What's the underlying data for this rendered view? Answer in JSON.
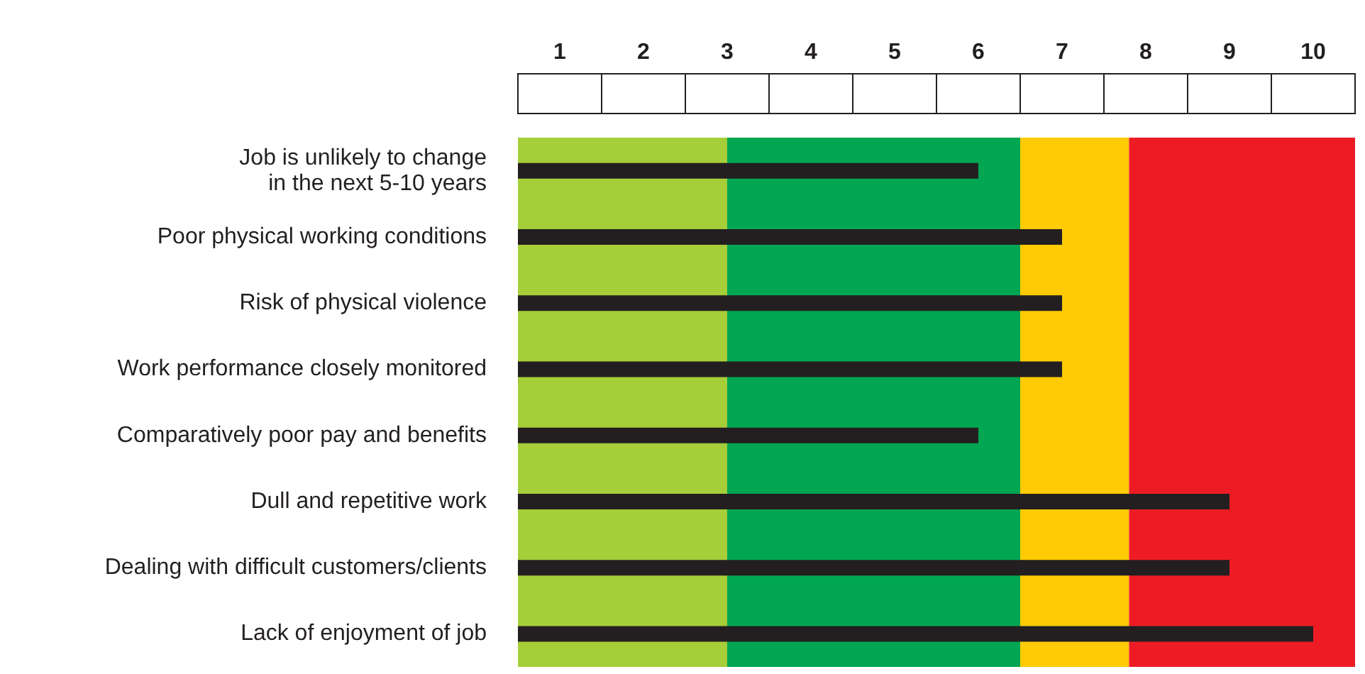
{
  "chart_data": {
    "type": "bar",
    "orientation": "horizontal",
    "categories": [
      "Job is unlikely to change\nin the next 5-10 years",
      "Poor physical working conditions",
      "Risk of physical violence",
      "Work performance closely monitored",
      "Comparatively poor pay and benefits",
      "Dull and repetitive work",
      "Dealing with difficult customers/clients",
      "Lack of enjoyment of job"
    ],
    "values": [
      6,
      7,
      7,
      7,
      6,
      9,
      9,
      10
    ],
    "color": "#231f20",
    "xlim": [
      0.5,
      10.5
    ],
    "xticks": [
      1,
      2,
      3,
      4,
      5,
      6,
      7,
      8,
      9,
      10
    ],
    "bands": [
      {
        "axis": "x",
        "from": 0.5,
        "to": 3,
        "color": "#a6ce39"
      },
      {
        "axis": "x",
        "from": 3,
        "to": 6.5,
        "color": "#00a651"
      },
      {
        "axis": "x",
        "from": 6.5,
        "to": 7.8,
        "color": "#ffcb05"
      },
      {
        "axis": "x",
        "from": 7.8,
        "to": 10.5,
        "color": "#ed1c24"
      }
    ],
    "grid": false
  }
}
